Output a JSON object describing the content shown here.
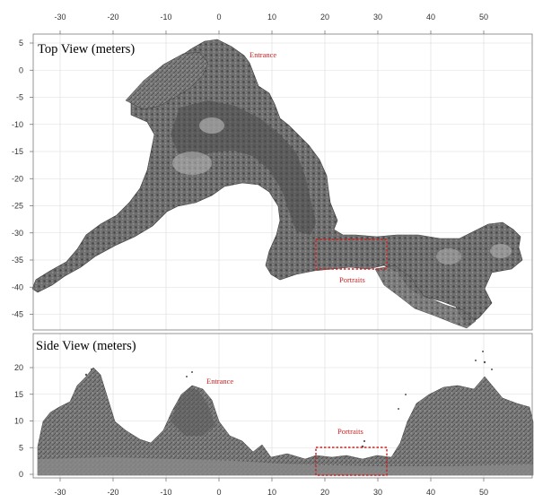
{
  "x_ticks": [
    "-30",
    "-20",
    "-10",
    "0",
    "10",
    "20",
    "30",
    "40",
    "50"
  ],
  "top_view": {
    "title": "Top View (meters)",
    "y_ticks": [
      "5",
      "0",
      "-5",
      "-10",
      "-15",
      "-20",
      "-25",
      "-30",
      "-35",
      "-40",
      "-45"
    ],
    "annotations": {
      "entrance": "Entrance",
      "portraits": "Portraits"
    }
  },
  "side_view": {
    "title": "Side View (meters)",
    "y_ticks": [
      "20",
      "15",
      "10",
      "5",
      "0"
    ],
    "annotations": {
      "entrance": "Entrance",
      "portraits": "Portraits"
    }
  },
  "colors": {
    "annotation": "#cc2222",
    "cave_fill": "#6b6b6b",
    "cave_dark": "#3a3a3a",
    "grid": "#dcdcdc"
  },
  "chart_data": [
    {
      "type": "scatter",
      "title": "Top View (meters)",
      "xlim": [
        -35,
        59
      ],
      "ylim": [
        -48,
        6
      ],
      "x_ticks": [
        -30,
        -20,
        -10,
        0,
        10,
        20,
        30,
        40,
        50
      ],
      "y_ticks": [
        5,
        0,
        -5,
        -10,
        -15,
        -20,
        -25,
        -30,
        -35,
        -40,
        -45
      ],
      "grid": true,
      "annotations": [
        {
          "text": "Entrance",
          "x": 6,
          "y": 2.5
        },
        {
          "text": "Portraits",
          "x": 22,
          "y": -40.5
        }
      ],
      "highlight_box": {
        "x": [
          18,
          31
        ],
        "y": [
          -37,
          -31.5
        ]
      }
    },
    {
      "type": "scatter",
      "title": "Side View (meters)",
      "xlim": [
        -35,
        59
      ],
      "ylim": [
        -0.5,
        24
      ],
      "x_ticks": [
        -30,
        -20,
        -10,
        0,
        10,
        20,
        30,
        40,
        50
      ],
      "y_ticks": [
        20,
        15,
        10,
        5,
        0
      ],
      "grid": true,
      "annotations": [
        {
          "text": "Entrance",
          "x": -2,
          "y": 15
        },
        {
          "text": "Portraits",
          "x": 22,
          "y": 7.5
        }
      ],
      "highlight_box": {
        "x": [
          18,
          31
        ],
        "y": [
          0,
          5
        ]
      }
    }
  ]
}
